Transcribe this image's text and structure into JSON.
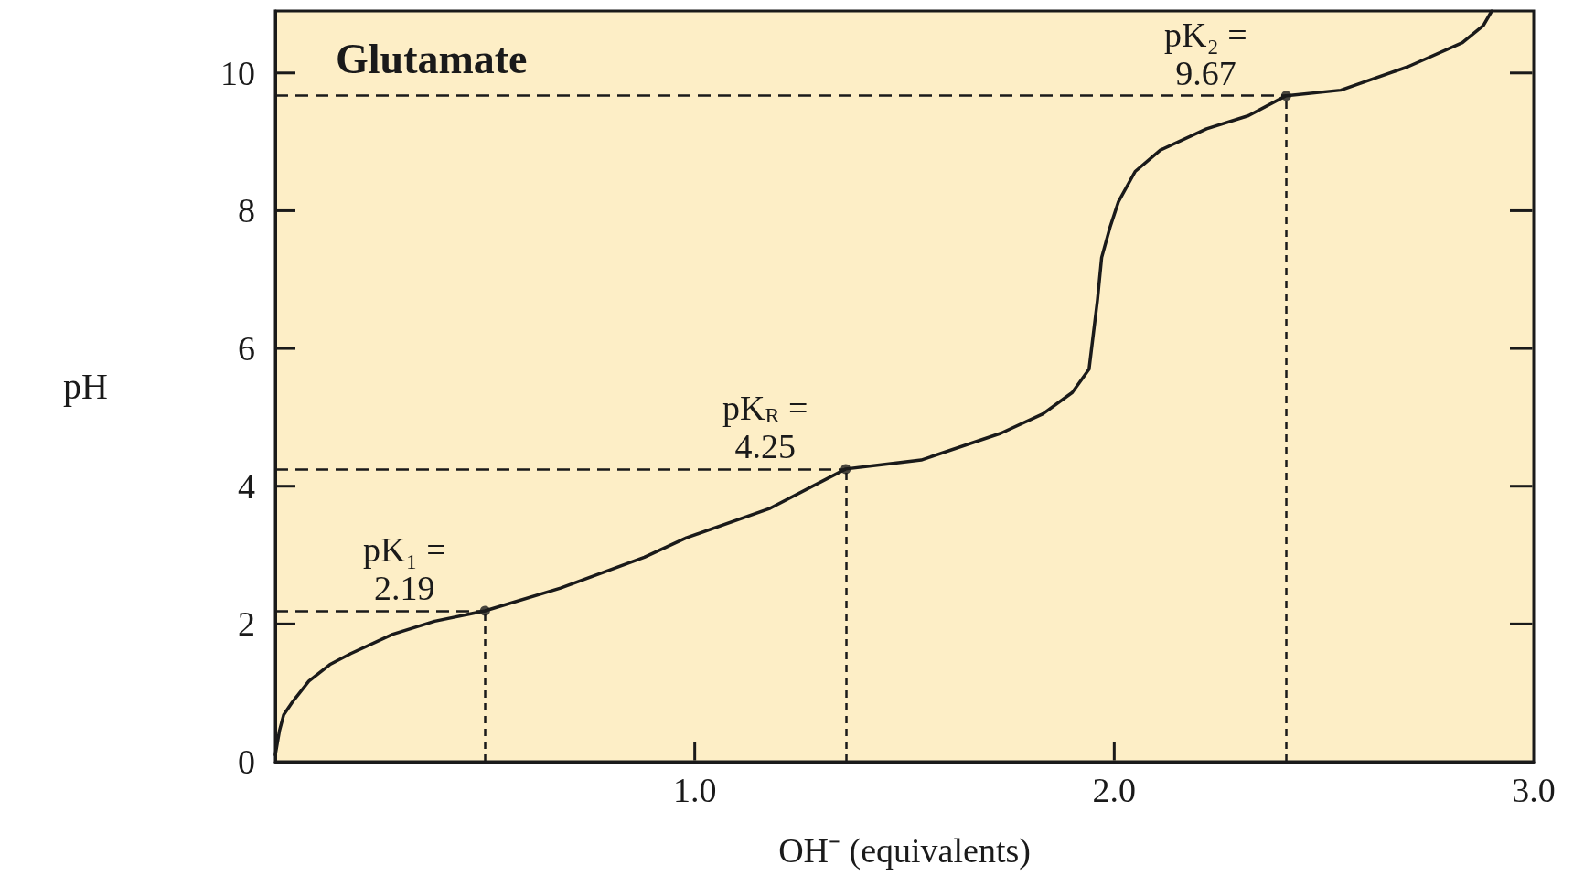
{
  "chart_data": {
    "type": "line",
    "title": "Glutamate",
    "xlabel": "OH⁻ (equivalents)",
    "ylabel": "pH",
    "xlim": [
      0,
      3
    ],
    "xticks": [
      {
        "value": 1,
        "label": "1.0"
      },
      {
        "value": 2,
        "label": "2.0"
      },
      {
        "value": 3,
        "label": "3.0"
      }
    ],
    "ylim": [
      0,
      10.9
    ],
    "yticks": [
      0,
      2,
      4,
      6,
      8,
      10
    ],
    "series": [
      {
        "type": "line",
        "color": "#1a1a1a",
        "marker": "none",
        "line_style": "solid",
        "x": [
          0,
          0.01,
          0.02,
          0.04,
          0.08,
          0.13,
          0.18,
          0.28,
          0.38,
          0.5,
          0.68,
          0.88,
          0.98,
          1.18,
          1.36,
          1.54,
          1.73,
          1.83,
          1.9,
          1.94,
          1.95,
          1.96,
          1.97,
          1.99,
          2.01,
          2.05,
          2.11,
          2.22,
          2.32,
          2.41,
          2.54,
          2.7,
          2.83,
          2.88,
          2.9
        ],
        "values": [
          0.1,
          0.45,
          0.68,
          0.86,
          1.17,
          1.41,
          1.57,
          1.85,
          2.04,
          2.19,
          2.52,
          2.97,
          3.25,
          3.68,
          4.25,
          4.38,
          4.77,
          5.05,
          5.36,
          5.7,
          6.2,
          6.7,
          7.32,
          7.76,
          8.13,
          8.57,
          8.88,
          9.19,
          9.38,
          9.67,
          9.75,
          10.09,
          10.44,
          10.69,
          10.9
        ]
      },
      {
        "type": "scatter",
        "color": "#1a1a1a",
        "marker": "circle",
        "x": [
          0.5,
          1.36,
          2.41
        ],
        "values": [
          2.19,
          4.25,
          9.67
        ]
      }
    ],
    "ref_lines": [
      {
        "axis": "y",
        "value": 2.19,
        "color": "#1a1a1a",
        "line_style": "dashed"
      },
      {
        "axis": "x",
        "value": 0.5,
        "color": "#1a1a1a",
        "line_style": "dashed"
      },
      {
        "axis": "y",
        "value": 4.25,
        "color": "#1a1a1a",
        "line_style": "dashed"
      },
      {
        "axis": "x",
        "value": 1.36,
        "color": "#1a1a1a",
        "line_style": "dashed"
      },
      {
        "axis": "y",
        "value": 9.67,
        "color": "#1a1a1a",
        "line_style": "dashed"
      },
      {
        "axis": "x",
        "value": 2.41,
        "color": "#1a1a1a",
        "line_style": "dashed"
      }
    ],
    "annotations": [
      {
        "text": "pK₁ =\n2.19",
        "x": 0.5,
        "y": 2.19
      },
      {
        "text": "pK$_{R}$ =\n4.25",
        "x": 1.36,
        "y": 4.25
      },
      {
        "text": "pK₂ =\n9.67",
        "x": 2.41,
        "y": 9.67
      }
    ],
    "grid": false
  }
}
